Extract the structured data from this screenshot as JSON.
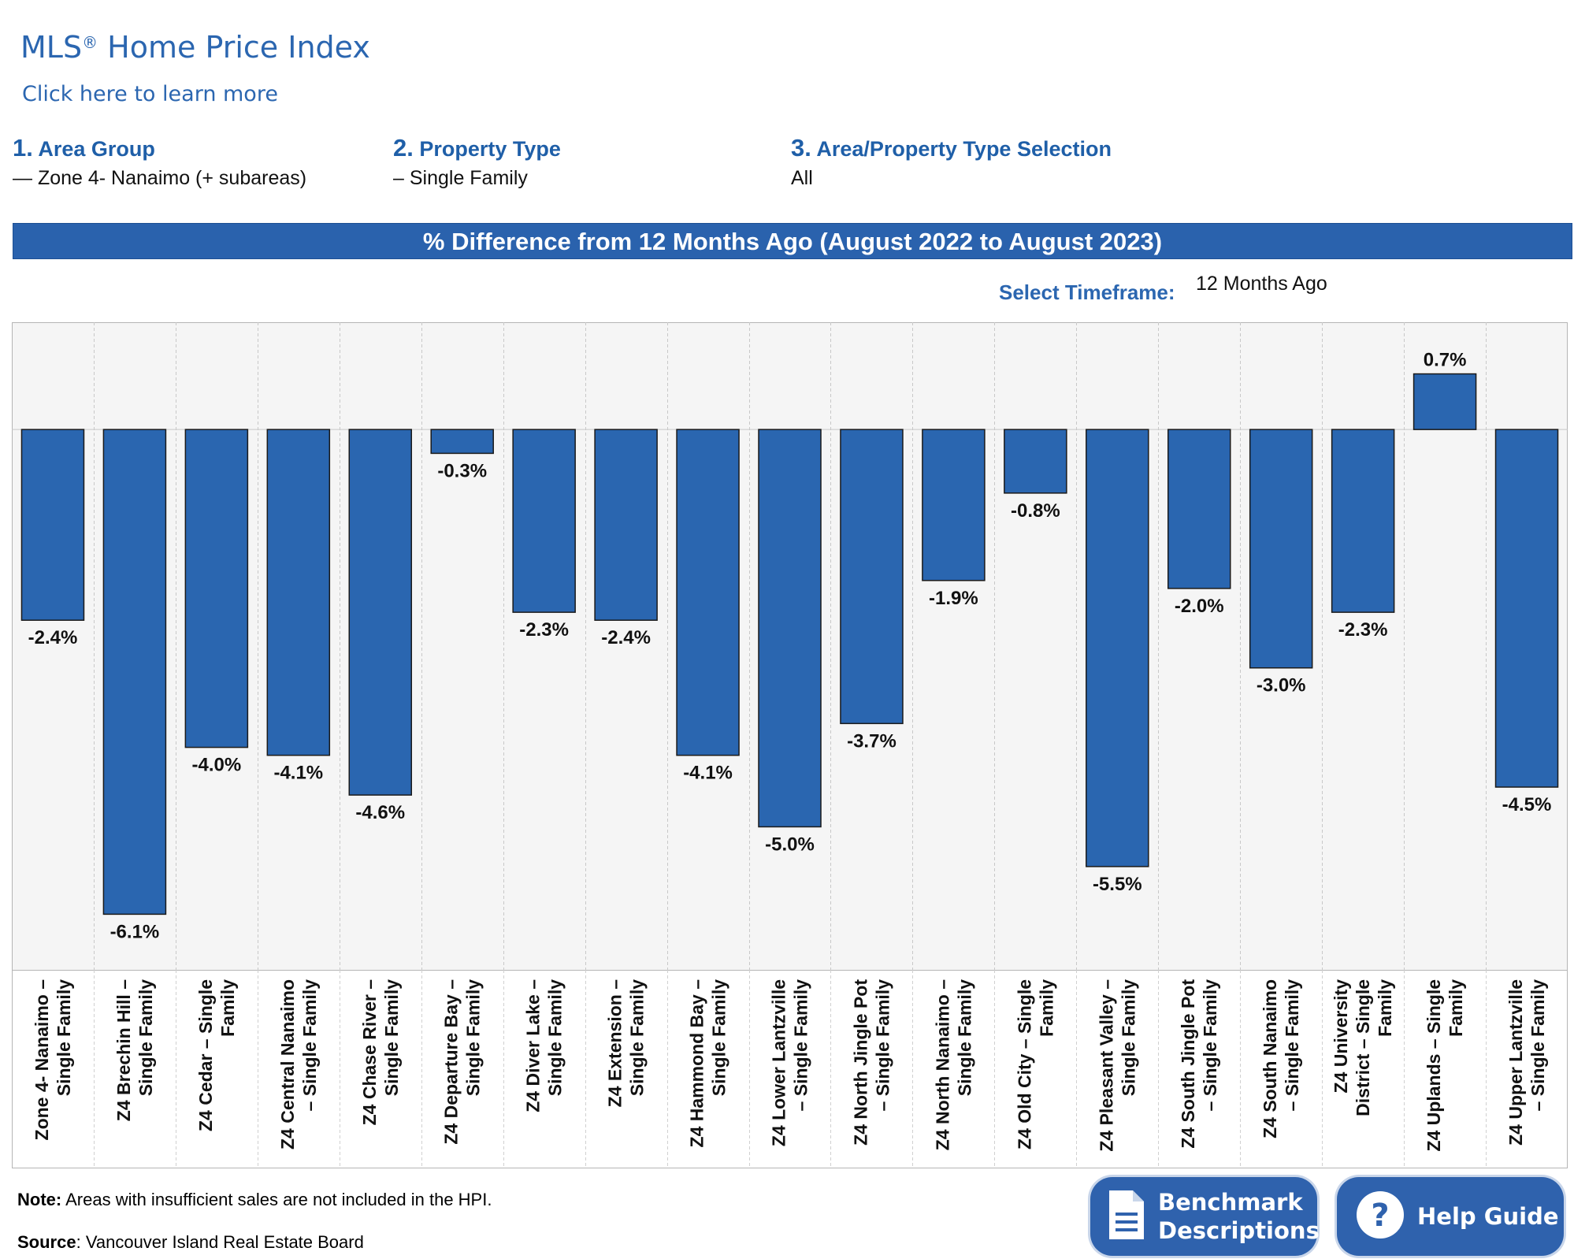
{
  "header": {
    "title": "MLS",
    "title_mark": "®",
    "title_rest": " Home Price Index",
    "learn_more": "Click here to learn more"
  },
  "selections": [
    {
      "num": "1.",
      "label": "Area Group",
      "value": "— Zone 4- Nanaimo (+ subareas)"
    },
    {
      "num": "2.",
      "label": "Property Type",
      "value": "– Single Family"
    },
    {
      "num": "3.",
      "label": "Area/Property Type Selection",
      "value": "All"
    }
  ],
  "banner": "% Difference from 12 Months Ago (August 2022 to August 2023)",
  "timeframe": {
    "label": "Select Timeframe:",
    "value": "12 Months Ago"
  },
  "colors": {
    "accent": "#2b66b0",
    "bar": "#2a66b0",
    "bar_stroke": "#1a1a1a",
    "plot_bg": "#f5f5f5"
  },
  "chart_data": {
    "type": "bar",
    "categories": [
      "Zone 4- Nanaimo – Single Family",
      "Z4 Brechin Hill – Single Family",
      "Z4 Cedar – Single Family",
      "Z4 Central Nanaimo – Single Family",
      "Z4 Chase River – Single Family",
      "Z4 Departure Bay – Single Family",
      "Z4 Diver Lake – Single Family",
      "Z4 Extension – Single Family",
      "Z4 Hammond Bay – Single Family",
      "Z4 Lower Lantzville – Single Family",
      "Z4 North Jingle Pot – Single Family",
      "Z4 North Nanaimo – Single Family",
      "Z4 Old City – Single Family",
      "Z4 Pleasant Valley – Single Family",
      "Z4 South Jingle Pot – Single Family",
      "Z4 South Nanaimo – Single Family",
      "Z4 University District – Single Family",
      "Z4 Uplands – Single Family",
      "Z4 Upper Lantzville – Single Family"
    ],
    "category_lines": [
      [
        "Zone 4- Nanaimo –",
        "Single Family"
      ],
      [
        "Z4 Brechin Hill –",
        "Single Family"
      ],
      [
        "Z4 Cedar – Single",
        "Family"
      ],
      [
        "Z4 Central Nanaimo",
        "– Single Family"
      ],
      [
        "Z4 Chase River –",
        "Single Family"
      ],
      [
        "Z4 Departure Bay –",
        "Single Family"
      ],
      [
        "Z4 Diver Lake –",
        "Single Family"
      ],
      [
        "Z4 Extension –",
        "Single Family"
      ],
      [
        "Z4 Hammond Bay –",
        "Single Family"
      ],
      [
        "Z4 Lower Lantzville",
        "– Single Family"
      ],
      [
        "Z4 North Jingle Pot",
        "– Single Family"
      ],
      [
        "Z4 North Nanaimo –",
        "Single Family"
      ],
      [
        "Z4 Old City – Single",
        "Family"
      ],
      [
        "Z4 Pleasant Valley –",
        "Single Family"
      ],
      [
        "Z4 South Jingle Pot",
        "– Single Family"
      ],
      [
        "Z4 South Nanaimo",
        "– Single Family"
      ],
      [
        "Z4 University",
        "District – Single",
        "Family"
      ],
      [
        "Z4 Uplands – Single",
        "Family"
      ],
      [
        "Z4 Upper Lantzville",
        "– Single Family"
      ]
    ],
    "values": [
      -2.4,
      -6.1,
      -4.0,
      -4.1,
      -4.6,
      -0.3,
      -2.3,
      -2.4,
      -4.1,
      -5.0,
      -3.7,
      -1.9,
      -0.8,
      -5.5,
      -2.0,
      -3.0,
      -2.3,
      0.7,
      -4.5
    ],
    "data_labels": [
      "-2.4%",
      "-6.1%",
      "-4.0%",
      "-4.1%",
      "-4.6%",
      "-0.3%",
      "-2.3%",
      "-2.4%",
      "-4.1%",
      "-5.0%",
      "-3.7%",
      "-1.9%",
      "-0.8%",
      "-5.5%",
      "-2.0%",
      "-3.0%",
      "-2.3%",
      "0.7%",
      "-4.5%"
    ],
    "ylim": [
      -6.8,
      1.35
    ],
    "grid": "vertical dashed separators between categories",
    "legend": "none"
  },
  "footer": {
    "note_label": "Note:",
    "note_text": " Areas with insufficient sales are not included in the HPI.",
    "source_label": "Source",
    "source_text": ": Vancouver Island Real Estate Board"
  },
  "buttons": {
    "benchmark_line1": "Benchmark",
    "benchmark_line2": "Descriptions",
    "help": "Help Guide",
    "benchmark_icon": "document-icon",
    "help_icon": "question-icon"
  }
}
